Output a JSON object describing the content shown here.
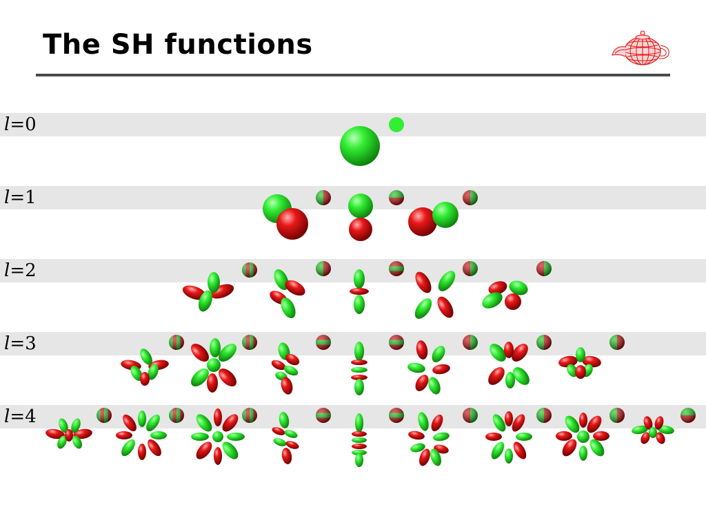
{
  "slide": {
    "title": "The SH functions",
    "logo_icon": "wireframe-teapot-icon"
  },
  "colors": {
    "positive": "#22dd22",
    "negative": "#dd1111",
    "band": "#e6e6e6",
    "rule": "#4a4a4a"
  },
  "rows": [
    {
      "l_symbol": "l",
      "l_value": "=0",
      "count": 1
    },
    {
      "l_symbol": "l",
      "l_value": "=1",
      "count": 3
    },
    {
      "l_symbol": "l",
      "l_value": "=2",
      "count": 5
    },
    {
      "l_symbol": "l",
      "l_value": "=3",
      "count": 7
    },
    {
      "l_symbol": "l",
      "l_value": "=4",
      "count": 9
    }
  ]
}
